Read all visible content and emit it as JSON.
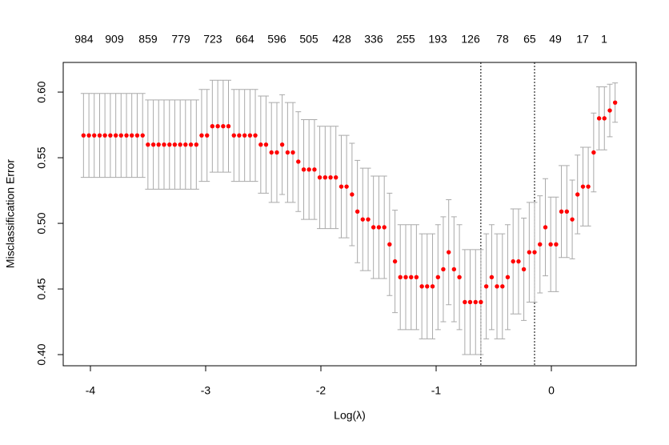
{
  "chart_data": {
    "type": "errorbar-scatter",
    "xlabel": "Log(λ)",
    "ylabel": "Misclassification Error",
    "xlim": [
      -4.236,
      0.736
    ],
    "ylim": [
      0.3915,
      0.6226
    ],
    "xticks": [
      -4,
      -3,
      -2,
      -1,
      0
    ],
    "yticks": [
      {
        "value": 0.4,
        "label": "0.40"
      },
      {
        "value": 0.45,
        "label": "0.45"
      },
      {
        "value": 0.5,
        "label": "0.50"
      },
      {
        "value": 0.55,
        "label": "0.55"
      },
      {
        "value": 0.6,
        "label": "0.60"
      }
    ],
    "top_ticks": [
      {
        "value": -4.056,
        "label": "984"
      },
      {
        "value": -3.792,
        "label": "909"
      },
      {
        "value": -3.5,
        "label": "859"
      },
      {
        "value": -3.215,
        "label": "779"
      },
      {
        "value": -2.938,
        "label": "723"
      },
      {
        "value": -2.66,
        "label": "664"
      },
      {
        "value": -2.382,
        "label": "596"
      },
      {
        "value": -2.104,
        "label": "505"
      },
      {
        "value": -1.819,
        "label": "428"
      },
      {
        "value": -1.542,
        "label": "336"
      },
      {
        "value": -1.264,
        "label": "255"
      },
      {
        "value": -0.986,
        "label": "193"
      },
      {
        "value": -0.701,
        "label": "126"
      },
      {
        "value": -0.424,
        "label": "78"
      },
      {
        "value": -0.188,
        "label": "65"
      },
      {
        "value": 0.035,
        "label": "49"
      },
      {
        "value": 0.271,
        "label": "17"
      },
      {
        "value": 0.458,
        "label": "1"
      }
    ],
    "vlines": [
      -0.612,
      -0.146
    ],
    "point_color": "#ff0000",
    "bar_color": "#aaaaaa",
    "x": [
      -4.06,
      -4.013,
      -3.967,
      -3.92,
      -3.874,
      -3.827,
      -3.78,
      -3.734,
      -3.687,
      -3.641,
      -3.594,
      -3.547,
      -3.501,
      -3.454,
      -3.408,
      -3.361,
      -3.314,
      -3.268,
      -3.221,
      -3.175,
      -3.128,
      -3.081,
      -3.035,
      -2.988,
      -2.942,
      -2.895,
      -2.848,
      -2.802,
      -2.755,
      -2.709,
      -2.662,
      -2.615,
      -2.569,
      -2.522,
      -2.476,
      -2.429,
      -2.382,
      -2.336,
      -2.289,
      -2.243,
      -2.196,
      -2.149,
      -2.103,
      -2.056,
      -2.01,
      -1.963,
      -1.916,
      -1.87,
      -1.823,
      -1.777,
      -1.73,
      -1.683,
      -1.637,
      -1.59,
      -1.544,
      -1.497,
      -1.45,
      -1.404,
      -1.357,
      -1.311,
      -1.264,
      -1.217,
      -1.171,
      -1.124,
      -1.078,
      -1.031,
      -0.984,
      -0.938,
      -0.891,
      -0.845,
      -0.798,
      -0.751,
      -0.705,
      -0.658,
      -0.612,
      -0.565,
      -0.518,
      -0.472,
      -0.425,
      -0.379,
      -0.332,
      -0.285,
      -0.239,
      -0.192,
      -0.146,
      -0.099,
      -0.052,
      -0.006,
      0.041,
      0.087,
      0.134,
      0.181,
      0.227,
      0.274,
      0.32,
      0.367,
      0.414,
      0.46,
      0.507,
      0.553
    ],
    "values": [
      0.567,
      0.567,
      0.567,
      0.567,
      0.567,
      0.567,
      0.567,
      0.567,
      0.567,
      0.567,
      0.567,
      0.567,
      0.56,
      0.56,
      0.56,
      0.56,
      0.56,
      0.56,
      0.56,
      0.56,
      0.56,
      0.56,
      0.567,
      0.567,
      0.574,
      0.574,
      0.574,
      0.574,
      0.567,
      0.567,
      0.567,
      0.567,
      0.567,
      0.56,
      0.56,
      0.554,
      0.554,
      0.56,
      0.554,
      0.554,
      0.547,
      0.541,
      0.541,
      0.541,
      0.535,
      0.535,
      0.535,
      0.535,
      0.528,
      0.528,
      0.522,
      0.509,
      0.503,
      0.503,
      0.497,
      0.497,
      0.497,
      0.484,
      0.471,
      0.459,
      0.459,
      0.459,
      0.459,
      0.452,
      0.452,
      0.452,
      0.459,
      0.465,
      0.478,
      0.465,
      0.459,
      0.44,
      0.44,
      0.44,
      0.44,
      0.452,
      0.459,
      0.452,
      0.452,
      0.459,
      0.471,
      0.471,
      0.465,
      0.478,
      0.478,
      0.484,
      0.497,
      0.484,
      0.484,
      0.509,
      0.509,
      0.503,
      0.522,
      0.528,
      0.528,
      0.554,
      0.58,
      0.58,
      0.586,
      0.592
    ],
    "errors": [
      0.032,
      0.032,
      0.032,
      0.032,
      0.032,
      0.032,
      0.032,
      0.032,
      0.032,
      0.032,
      0.032,
      0.032,
      0.034,
      0.034,
      0.034,
      0.034,
      0.034,
      0.034,
      0.034,
      0.034,
      0.034,
      0.034,
      0.035,
      0.035,
      0.035,
      0.035,
      0.035,
      0.035,
      0.035,
      0.035,
      0.035,
      0.035,
      0.035,
      0.037,
      0.037,
      0.038,
      0.038,
      0.038,
      0.038,
      0.038,
      0.038,
      0.038,
      0.038,
      0.038,
      0.039,
      0.039,
      0.039,
      0.039,
      0.039,
      0.039,
      0.039,
      0.039,
      0.039,
      0.039,
      0.039,
      0.039,
      0.039,
      0.039,
      0.039,
      0.04,
      0.04,
      0.04,
      0.04,
      0.04,
      0.04,
      0.04,
      0.04,
      0.04,
      0.04,
      0.04,
      0.04,
      0.04,
      0.04,
      0.04,
      0.04,
      0.04,
      0.04,
      0.04,
      0.04,
      0.04,
      0.04,
      0.04,
      0.039,
      0.038,
      0.038,
      0.037,
      0.037,
      0.036,
      0.036,
      0.035,
      0.035,
      0.03,
      0.03,
      0.03,
      0.03,
      0.03,
      0.024,
      0.024,
      0.02,
      0.015
    ]
  }
}
